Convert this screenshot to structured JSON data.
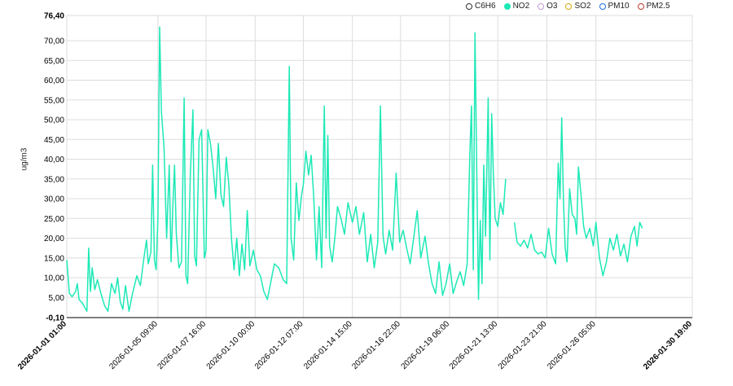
{
  "legend": {
    "items": [
      {
        "label": "C6H6",
        "color": "#333333",
        "filled": false
      },
      {
        "label": "NO2",
        "color": "#1de9b6",
        "filled": true
      },
      {
        "label": "O3",
        "color": "#c39bd3",
        "filled": false
      },
      {
        "label": "SO2",
        "color": "#d4ac0d",
        "filled": false
      },
      {
        "label": "PM10",
        "color": "#1e6fd9",
        "filled": false
      },
      {
        "label": "PM2.5",
        "color": "#c0392b",
        "filled": false
      }
    ]
  },
  "chart_data": {
    "type": "line",
    "ylabel": "ug/m3",
    "xlabel": "",
    "ylim": [
      -0.1,
      76.4
    ],
    "y_ticks": [
      "-0,10",
      "5,00",
      "10,00",
      "15,00",
      "20,00",
      "25,00",
      "30,00",
      "35,00",
      "40,00",
      "45,00",
      "50,00",
      "55,00",
      "60,00",
      "65,00",
      "70,00",
      "76,40"
    ],
    "x_ticks": [
      {
        "label": "2026-01-01 01:00",
        "bold": true
      },
      {
        "label": "2026-01-05 09:00",
        "bold": false
      },
      {
        "label": "2026-01-07 16:00",
        "bold": false
      },
      {
        "label": "2026-01-10 00:00",
        "bold": false
      },
      {
        "label": "2026-01-12 07:00",
        "bold": false
      },
      {
        "label": "2026-01-14 15:00",
        "bold": false
      },
      {
        "label": "2026-01-16 22:00",
        "bold": false
      },
      {
        "label": "2026-01-19 06:00",
        "bold": false
      },
      {
        "label": "2026-01-21 13:00",
        "bold": false
      },
      {
        "label": "2026-01-23 21:00",
        "bold": false
      },
      {
        "label": "2026-01-26 05:00",
        "bold": false
      },
      {
        "label": "2026-01-30 19:00",
        "bold": true
      }
    ],
    "grid": true,
    "legend_position": "top-right",
    "series": [
      {
        "name": "NO2",
        "color": "#1de9b6",
        "segments": [
          [
            [
              "2026-01-01 01:00",
              14.5
            ],
            [
              "2026-01-01 04:00",
              6.0
            ],
            [
              "2026-01-01 07:00",
              5.2
            ],
            [
              "2026-01-01 11:00",
              6.5
            ],
            [
              "2026-01-01 13:00",
              8.5
            ],
            [
              "2026-01-01 15:00",
              4.5
            ],
            [
              "2026-01-01 19:00",
              3.5
            ],
            [
              "2026-01-02 00:00",
              1.5
            ],
            [
              "2026-01-02 02:00",
              17.5
            ],
            [
              "2026-01-02 04:00",
              6.5
            ],
            [
              "2026-01-02 06:00",
              12.5
            ],
            [
              "2026-01-02 09:00",
              7.0
            ],
            [
              "2026-01-02 12:00",
              9.5
            ],
            [
              "2026-01-02 16:00",
              6.0
            ],
            [
              "2026-01-02 20:00",
              3.0
            ],
            [
              "2026-01-03 00:00",
              1.5
            ],
            [
              "2026-01-03 04:00",
              8.5
            ],
            [
              "2026-01-03 08:00",
              6.0
            ],
            [
              "2026-01-03 11:00",
              10.0
            ],
            [
              "2026-01-03 14:00",
              4.0
            ],
            [
              "2026-01-03 17:00",
              2.0
            ],
            [
              "2026-01-03 20:00",
              8.0
            ],
            [
              "2026-01-04 00:00",
              1.5
            ],
            [
              "2026-01-04 04:00",
              6.0
            ],
            [
              "2026-01-04 09:00",
              10.5
            ],
            [
              "2026-01-04 13:00",
              8.0
            ],
            [
              "2026-01-04 17:00",
              15.0
            ],
            [
              "2026-01-04 20:00",
              19.5
            ],
            [
              "2026-01-04 22:00",
              13.5
            ],
            [
              "2026-01-05 01:00",
              16.5
            ],
            [
              "2026-01-05 03:00",
              38.5
            ],
            [
              "2026-01-05 05:00",
              14.5
            ],
            [
              "2026-01-05 07:00",
              12.0
            ],
            [
              "2026-01-05 09:00",
              25.0
            ],
            [
              "2026-01-05 11:00",
              73.5
            ],
            [
              "2026-01-05 13:00",
              52.0
            ],
            [
              "2026-01-05 16:00",
              43.0
            ],
            [
              "2026-01-05 19:00",
              20.0
            ],
            [
              "2026-01-05 22:00",
              38.5
            ],
            [
              "2026-01-06 00:00",
              14.0
            ],
            [
              "2026-01-06 02:00",
              28.0
            ],
            [
              "2026-01-06 04:00",
              38.5
            ],
            [
              "2026-01-06 06:00",
              21.0
            ],
            [
              "2026-01-06 09:00",
              12.5
            ],
            [
              "2026-01-06 12:00",
              14.0
            ],
            [
              "2026-01-06 15:00",
              55.5
            ],
            [
              "2026-01-06 17:00",
              10.5
            ],
            [
              "2026-01-06 19:00",
              8.5
            ],
            [
              "2026-01-06 22:00",
              36.0
            ],
            [
              "2026-01-07 01:00",
              52.5
            ],
            [
              "2026-01-07 03:00",
              15.5
            ],
            [
              "2026-01-07 05:00",
              13.0
            ],
            [
              "2026-01-07 08:00",
              45.0
            ],
            [
              "2026-01-07 11:00",
              47.5
            ],
            [
              "2026-01-07 14:00",
              15.0
            ],
            [
              "2026-01-07 16:00",
              17.0
            ],
            [
              "2026-01-07 18:00",
              47.5
            ],
            [
              "2026-01-07 21:00",
              44.0
            ],
            [
              "2026-01-08 00:00",
              38.0
            ],
            [
              "2026-01-08 03:00",
              30.0
            ],
            [
              "2026-01-08 06:00",
              44.0
            ],
            [
              "2026-01-08 09:00",
              31.0
            ],
            [
              "2026-01-08 12:00",
              28.0
            ],
            [
              "2026-01-08 15:00",
              40.5
            ],
            [
              "2026-01-08 18:00",
              33.5
            ],
            [
              "2026-01-08 21:00",
              20.0
            ],
            [
              "2026-01-09 00:00",
              12.0
            ],
            [
              "2026-01-09 03:00",
              20.0
            ],
            [
              "2026-01-09 06:00",
              10.5
            ],
            [
              "2026-01-09 09:00",
              18.5
            ],
            [
              "2026-01-09 12:00",
              12.0
            ],
            [
              "2026-01-09 15:00",
              27.0
            ],
            [
              "2026-01-09 18:00",
              13.0
            ],
            [
              "2026-01-09 22:00",
              17.0
            ],
            [
              "2026-01-10 02:00",
              12.0
            ],
            [
              "2026-01-10 06:00",
              10.5
            ],
            [
              "2026-01-10 10:00",
              6.5
            ],
            [
              "2026-01-10 14:00",
              4.5
            ],
            [
              "2026-01-10 18:00",
              9.0
            ],
            [
              "2026-01-10 22:00",
              13.5
            ],
            [
              "2026-01-11 03:00",
              12.5
            ],
            [
              "2026-01-11 08:00",
              9.5
            ],
            [
              "2026-01-11 12:00",
              8.5
            ],
            [
              "2026-01-11 15:00",
              63.5
            ],
            [
              "2026-01-11 17:00",
              20.0
            ],
            [
              "2026-01-11 20:00",
              14.5
            ],
            [
              "2026-01-11 23:00",
              34.0
            ],
            [
              "2026-01-12 02:00",
              24.5
            ],
            [
              "2026-01-12 05:00",
              31.0
            ],
            [
              "2026-01-12 07:00",
              33.5
            ],
            [
              "2026-01-12 10:00",
              42.0
            ],
            [
              "2026-01-12 13:00",
              36.0
            ],
            [
              "2026-01-12 16:00",
              41.0
            ],
            [
              "2026-01-12 19:00",
              30.0
            ],
            [
              "2026-01-12 22:00",
              14.5
            ],
            [
              "2026-01-13 01:00",
              28.0
            ],
            [
              "2026-01-13 04:00",
              12.5
            ],
            [
              "2026-01-13 07:00",
              53.5
            ],
            [
              "2026-01-13 09:00",
              20.0
            ],
            [
              "2026-01-13 11:00",
              46.0
            ],
            [
              "2026-01-13 13:00",
              18.0
            ],
            [
              "2026-01-13 16:00",
              14.0
            ],
            [
              "2026-01-13 19:00",
              20.0
            ],
            [
              "2026-01-13 22:00",
              28.0
            ],
            [
              "2026-01-14 02:00",
              25.0
            ],
            [
              "2026-01-14 06:00",
              21.0
            ],
            [
              "2026-01-14 10:00",
              29.0
            ],
            [
              "2026-01-14 15:00",
              24.0
            ],
            [
              "2026-01-14 19:00",
              28.0
            ],
            [
              "2026-01-14 23:00",
              21.0
            ],
            [
              "2026-01-15 04:00",
              26.5
            ],
            [
              "2026-01-15 08:00",
              14.0
            ],
            [
              "2026-01-15 12:00",
              21.0
            ],
            [
              "2026-01-15 16:00",
              12.5
            ],
            [
              "2026-01-15 20:00",
              19.0
            ],
            [
              "2026-01-15 23:00",
              53.5
            ],
            [
              "2026-01-16 02:00",
              20.5
            ],
            [
              "2026-01-16 05:00",
              16.0
            ],
            [
              "2026-01-16 09:00",
              22.0
            ],
            [
              "2026-01-16 13:00",
              17.0
            ],
            [
              "2026-01-16 17:00",
              36.5
            ],
            [
              "2026-01-16 21:00",
              19.0
            ],
            [
              "2026-01-17 01:00",
              22.0
            ],
            [
              "2026-01-17 05:00",
              17.5
            ],
            [
              "2026-01-17 09:00",
              13.5
            ],
            [
              "2026-01-17 13:00",
              20.0
            ],
            [
              "2026-01-17 17:00",
              27.0
            ],
            [
              "2026-01-17 21:00",
              15.0
            ],
            [
              "2026-01-18 02:00",
              20.5
            ],
            [
              "2026-01-18 06:00",
              13.5
            ],
            [
              "2026-01-18 10:00",
              8.5
            ],
            [
              "2026-01-18 14:00",
              6.0
            ],
            [
              "2026-01-18 18:00",
              14.0
            ],
            [
              "2026-01-18 22:00",
              5.5
            ],
            [
              "2026-01-19 02:00",
              8.5
            ],
            [
              "2026-01-19 06:00",
              13.5
            ],
            [
              "2026-01-19 10:00",
              6.0
            ],
            [
              "2026-01-19 14:00",
              9.0
            ],
            [
              "2026-01-19 18:00",
              11.5
            ],
            [
              "2026-01-19 22:00",
              8.0
            ],
            [
              "2026-01-20 02:00",
              13.5
            ],
            [
              "2026-01-20 05:00",
              40.5
            ],
            [
              "2026-01-20 07:00",
              53.5
            ],
            [
              "2026-01-20 09:00",
              12.0
            ],
            [
              "2026-01-20 11:00",
              72.0
            ],
            [
              "2026-01-20 13:00",
              37.0
            ],
            [
              "2026-01-20 15:00",
              4.5
            ],
            [
              "2026-01-20 17:00",
              24.5
            ],
            [
              "2026-01-20 19:00",
              8.5
            ],
            [
              "2026-01-20 21:00",
              38.5
            ],
            [
              "2026-01-20 23:00",
              20.5
            ],
            [
              "2026-01-21 02:00",
              55.5
            ],
            [
              "2026-01-21 04:00",
              14.5
            ],
            [
              "2026-01-21 06:00",
              51.5
            ],
            [
              "2026-01-21 08:00",
              36.0
            ],
            [
              "2026-01-21 10:00",
              25.0
            ],
            [
              "2026-01-21 13:00",
              23.0
            ],
            [
              "2026-01-21 16:00",
              29.0
            ],
            [
              "2026-01-21 19:00",
              26.0
            ],
            [
              "2026-01-21 22:00",
              35.0
            ]
          ],
          [
            [
              "2026-01-22 08:00",
              24.0
            ],
            [
              "2026-01-22 11:00",
              19.0
            ],
            [
              "2026-01-22 15:00",
              18.0
            ],
            [
              "2026-01-22 19:00",
              19.5
            ],
            [
              "2026-01-22 23:00",
              17.5
            ],
            [
              "2026-01-23 03:00",
              21.0
            ],
            [
              "2026-01-23 07:00",
              17.0
            ],
            [
              "2026-01-23 11:00",
              16.0
            ],
            [
              "2026-01-23 15:00",
              16.5
            ],
            [
              "2026-01-23 19:00",
              15.0
            ],
            [
              "2026-01-23 23:00",
              22.5
            ],
            [
              "2026-01-24 03:00",
              16.0
            ],
            [
              "2026-01-24 07:00",
              13.5
            ],
            [
              "2026-01-24 10:00",
              39.0
            ],
            [
              "2026-01-24 12:00",
              30.0
            ],
            [
              "2026-01-24 14:00",
              50.5
            ],
            [
              "2026-01-24 16:00",
              29.0
            ],
            [
              "2026-01-24 18:00",
              17.5
            ],
            [
              "2026-01-24 20:00",
              14.0
            ],
            [
              "2026-01-24 23:00",
              32.5
            ],
            [
              "2026-01-25 02:00",
              26.0
            ],
            [
              "2026-01-25 05:00",
              25.0
            ],
            [
              "2026-01-25 07:00",
              21.0
            ],
            [
              "2026-01-25 09:00",
              38.0
            ],
            [
              "2026-01-25 12:00",
              31.0
            ],
            [
              "2026-01-25 15:00",
              23.0
            ],
            [
              "2026-01-25 18:00",
              20.0
            ],
            [
              "2026-01-25 22:00",
              22.5
            ],
            [
              "2026-01-26 02:00",
              18.0
            ],
            [
              "2026-01-26 05:00",
              24.0
            ],
            [
              "2026-01-26 09:00",
              15.0
            ],
            [
              "2026-01-26 13:00",
              10.5
            ],
            [
              "2026-01-26 17:00",
              14.0
            ],
            [
              "2026-01-26 21:00",
              20.0
            ],
            [
              "2026-01-27 01:00",
              17.0
            ],
            [
              "2026-01-27 05:00",
              21.0
            ],
            [
              "2026-01-27 09:00",
              15.5
            ],
            [
              "2026-01-27 13:00",
              18.5
            ],
            [
              "2026-01-27 17:00",
              14.0
            ],
            [
              "2026-01-27 21:00",
              20.5
            ],
            [
              "2026-01-28 01:00",
              23.0
            ],
            [
              "2026-01-28 04:00",
              18.0
            ],
            [
              "2026-01-28 07:00",
              24.0
            ],
            [
              "2026-01-28 10:00",
              22.5
            ]
          ]
        ]
      }
    ]
  }
}
